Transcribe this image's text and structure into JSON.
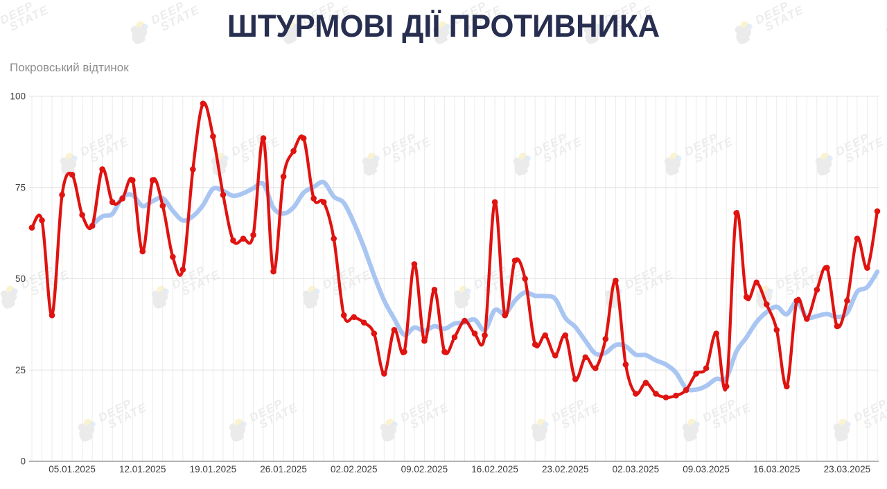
{
  "header": {
    "title": "ШТУРМОВІ ДІЇ ПРОТИВНИКА",
    "subtitle": "Покровський відтинок"
  },
  "watermark": {
    "line1": "DEEP",
    "line2": "STATE"
  },
  "colors": {
    "title": "#272e4f",
    "subtitle": "#8d8d8d",
    "red_line": "#df1310",
    "blue_line": "#a9c6f2",
    "grid_vertical": "#ebebeb",
    "grid_horizontal": "#e2e2e2",
    "axis_line": "#9b9b9b",
    "tick_text": "#3c3c3c",
    "watermark_text": "#e2e2e2",
    "watermark_icon": "#e0e0e0",
    "watermark_yellow": "#f6e6a0",
    "watermark_blue": "#bdd7f4"
  },
  "chart_data": {
    "type": "line",
    "title": "ШТУРМОВІ ДІЇ ПРОТИВНИКА",
    "subtitle": "Покровський відтинок",
    "x_unit": "day",
    "x_range": [
      "01.01.2025",
      "26.03.2025"
    ],
    "n_points": 85,
    "x_tick_indices": [
      4,
      11,
      18,
      25,
      32,
      39,
      46,
      53,
      60,
      67,
      74,
      81
    ],
    "x_tick_labels": [
      "05.01.2025",
      "12.01.2025",
      "19.01.2025",
      "26.01.2025",
      "02.02.2025",
      "09.02.2025",
      "16.02.2025",
      "23.02.2025",
      "02.03.2025",
      "09.03.2025",
      "16.03.2025",
      "23.03.2025"
    ],
    "y_ticks": [
      0,
      25,
      50,
      75,
      100
    ],
    "ylim": [
      0,
      100
    ],
    "grid": {
      "vertical": "daily",
      "horizontal": "step 25"
    },
    "legend_position": "none",
    "series": [
      {
        "name": "daily_assault_actions",
        "style": "line+markers",
        "color": "#df1310",
        "values": [
          64,
          66,
          40,
          73,
          78.5,
          67.5,
          64.5,
          80,
          71,
          72,
          77,
          57.5,
          77,
          70,
          56,
          52.5,
          80,
          98,
          89,
          73,
          60.5,
          61,
          62,
          88.5,
          52,
          78,
          85,
          88.5,
          72,
          71,
          61,
          40,
          39.5,
          38,
          35,
          24,
          36,
          30,
          54,
          33,
          47,
          30,
          34,
          38.5,
          35,
          34.5,
          71,
          40,
          55,
          50,
          32,
          34.5,
          29,
          34.5,
          22.5,
          28.5,
          25.5,
          33.5,
          49.5,
          26.5,
          18.5,
          21.5,
          18.5,
          17.5,
          18,
          19.5,
          24,
          25.5,
          35,
          20.5,
          68,
          45,
          49,
          43,
          36,
          20.5,
          44,
          39,
          47,
          53,
          37,
          44,
          61,
          53,
          68.5
        ]
      },
      {
        "name": "moving_average_7d",
        "style": "smooth_line",
        "color": "#a9c6f2",
        "derived_from": "daily_assault_actions",
        "derivation": "trailing 7-day mean, plotted from day index 6",
        "window": 7
      }
    ]
  }
}
